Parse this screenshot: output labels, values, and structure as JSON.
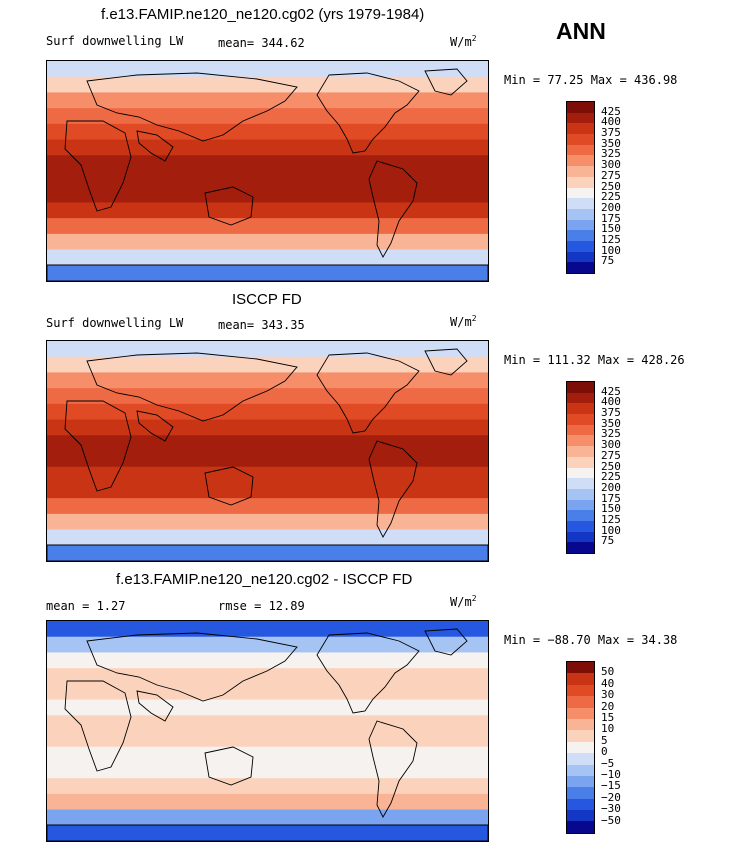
{
  "season": "ANN",
  "panels": [
    {
      "title": "f.e13.FAMIP.ne120_ne120.cg02 (yrs 1979-1984)",
      "left_label": "Surf downwelling LW",
      "center_label": "mean= 344.62",
      "units": "W/m",
      "units_sup": "2",
      "minmax": "Min =  77.25 Max = 436.98",
      "colorbar_labels": [
        "425",
        "400",
        "375",
        "350",
        "325",
        "300",
        "275",
        "250",
        "225",
        "200",
        "175",
        "150",
        "125",
        "100",
        "75"
      ]
    },
    {
      "title": "ISCCP FD",
      "left_label": "Surf downwelling LW",
      "center_label": "mean= 343.35",
      "units": "W/m",
      "units_sup": "2",
      "minmax": "Min = 111.32 Max = 428.26",
      "colorbar_labels": [
        "425",
        "400",
        "375",
        "350",
        "325",
        "300",
        "275",
        "250",
        "225",
        "200",
        "175",
        "150",
        "125",
        "100",
        "75"
      ]
    },
    {
      "title": "f.e13.FAMIP.ne120_ne120.cg02 - ISCCP FD",
      "left_label": "mean =   1.27",
      "center_label": "rmse =  12.89",
      "units": "W/m",
      "units_sup": "2",
      "minmax": "Min = −88.70 Max =  34.38",
      "colorbar_labels": [
        "50",
        "40",
        "30",
        "20",
        "15",
        "10",
        "5",
        "0",
        "−5",
        "−10",
        "−15",
        "−20",
        "−30",
        "−50"
      ]
    }
  ],
  "chart_data": [
    {
      "type": "heatmap",
      "title": "f.e13.FAMIP.ne120_ne120.cg02 (yrs 1979-1984)",
      "variable": "Surf downwelling LW",
      "units": "W/m2",
      "mean": 344.62,
      "min": 77.25,
      "max": 436.98,
      "contour_levels": [
        75,
        100,
        125,
        150,
        175,
        200,
        225,
        250,
        275,
        300,
        325,
        350,
        375,
        400,
        425
      ],
      "colors": [
        "#08088f",
        "#1336c4",
        "#2557e0",
        "#4a7ee8",
        "#7aa4ef",
        "#a6c4f3",
        "#cfddf6",
        "#f5f2ef",
        "#fbd3bd",
        "#f9b496",
        "#f68e6a",
        "#ee6a45",
        "#e04a24",
        "#c83414",
        "#a31e0c",
        "#7d0d07"
      ],
      "zonal_band_values": [
        210,
        265,
        300,
        335,
        370,
        395,
        405,
        412,
        400,
        380,
        345,
        290,
        210,
        125
      ]
    },
    {
      "type": "heatmap",
      "title": "ISCCP FD",
      "variable": "Surf downwelling LW",
      "units": "W/m2",
      "mean": 343.35,
      "min": 111.32,
      "max": 428.26,
      "contour_levels": [
        75,
        100,
        125,
        150,
        175,
        200,
        225,
        250,
        275,
        300,
        325,
        350,
        375,
        400,
        425
      ],
      "colors": [
        "#08088f",
        "#1336c4",
        "#2557e0",
        "#4a7ee8",
        "#7aa4ef",
        "#a6c4f3",
        "#cfddf6",
        "#f5f2ef",
        "#fbd3bd",
        "#f9b496",
        "#f68e6a",
        "#ee6a45",
        "#e04a24",
        "#c83414",
        "#a31e0c",
        "#7d0d07"
      ],
      "zonal_band_values": [
        215,
        265,
        300,
        335,
        365,
        390,
        400,
        405,
        395,
        375,
        340,
        290,
        215,
        140
      ]
    },
    {
      "type": "heatmap",
      "title": "f.e13.FAMIP.ne120_ne120.cg02 - ISCCP FD",
      "units": "W/m2",
      "mean": 1.27,
      "rmse": 12.89,
      "min": -88.7,
      "max": 34.38,
      "contour_levels": [
        -50,
        -30,
        -20,
        -15,
        -10,
        -5,
        0,
        5,
        10,
        15,
        20,
        30,
        40,
        50
      ],
      "colors": [
        "#08088f",
        "#1336c4",
        "#2557e0",
        "#4a7ee8",
        "#7aa4ef",
        "#a6c4f3",
        "#cfddf6",
        "#f5f2ef",
        "#fbd3bd",
        "#f9b496",
        "#f68e6a",
        "#ee6a45",
        "#e04a24",
        "#c83414",
        "#7d0d07"
      ],
      "zonal_band_values": [
        -22,
        -8,
        4,
        8,
        6,
        4,
        5,
        6,
        4,
        3,
        9,
        12,
        -12,
        -25
      ]
    }
  ]
}
